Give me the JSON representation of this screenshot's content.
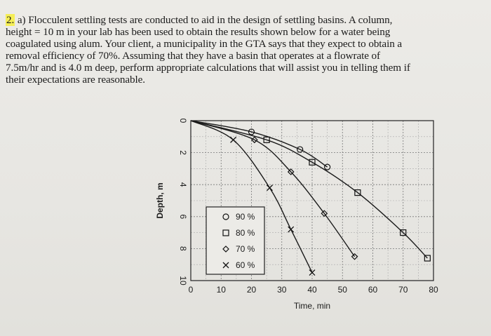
{
  "question": {
    "number": "2.",
    "lines": [
      "a) Flocculent settling tests are conducted to aid in the design of settling basins. A column,",
      "height = 10 m in your lab has been used to obtain the results shown below for a water being",
      "coagulated using alum. Your client, a municipality in the GTA says that they expect to obtain a",
      "removal efficiency of 70%. Assuming that they have a basin that operates at a flowrate of",
      "7.5m/hr and is 4.0 m deep, perform appropriate calculations that will assist you in telling them if",
      "their expectations are reasonable."
    ]
  },
  "chart_data": {
    "type": "line",
    "xlabel": "Time, min",
    "ylabel": "Depth, m",
    "xlim": [
      0,
      80
    ],
    "ylim": [
      10,
      0
    ],
    "y_inverted": true,
    "x_ticks": [
      "0",
      "10",
      "20",
      "30",
      "40",
      "50",
      "60",
      "70",
      "80"
    ],
    "y_ticks": [
      "0",
      "2",
      "4",
      "6",
      "8",
      "10"
    ],
    "grid": true,
    "legend_position": "inside-bottom-left",
    "series": [
      {
        "name": "90 %",
        "marker": "circle",
        "points": [
          [
            0,
            0
          ],
          [
            20,
            0.7
          ],
          [
            36,
            1.8
          ],
          [
            45,
            2.9
          ]
        ]
      },
      {
        "name": "80 %",
        "marker": "square",
        "points": [
          [
            0,
            0
          ],
          [
            25,
            1.2
          ],
          [
            40,
            2.6
          ],
          [
            55,
            4.5
          ],
          [
            70,
            7.0
          ],
          [
            78,
            8.6
          ]
        ]
      },
      {
        "name": "70 %",
        "marker": "diamond",
        "points": [
          [
            0,
            0
          ],
          [
            21,
            1.2
          ],
          [
            33,
            3.2
          ],
          [
            44,
            5.8
          ],
          [
            54,
            8.5
          ]
        ]
      },
      {
        "name": "60 %",
        "marker": "x",
        "points": [
          [
            0,
            0
          ],
          [
            14,
            1.2
          ],
          [
            26,
            4.2
          ],
          [
            33,
            6.8
          ],
          [
            40,
            9.5
          ]
        ]
      }
    ]
  }
}
